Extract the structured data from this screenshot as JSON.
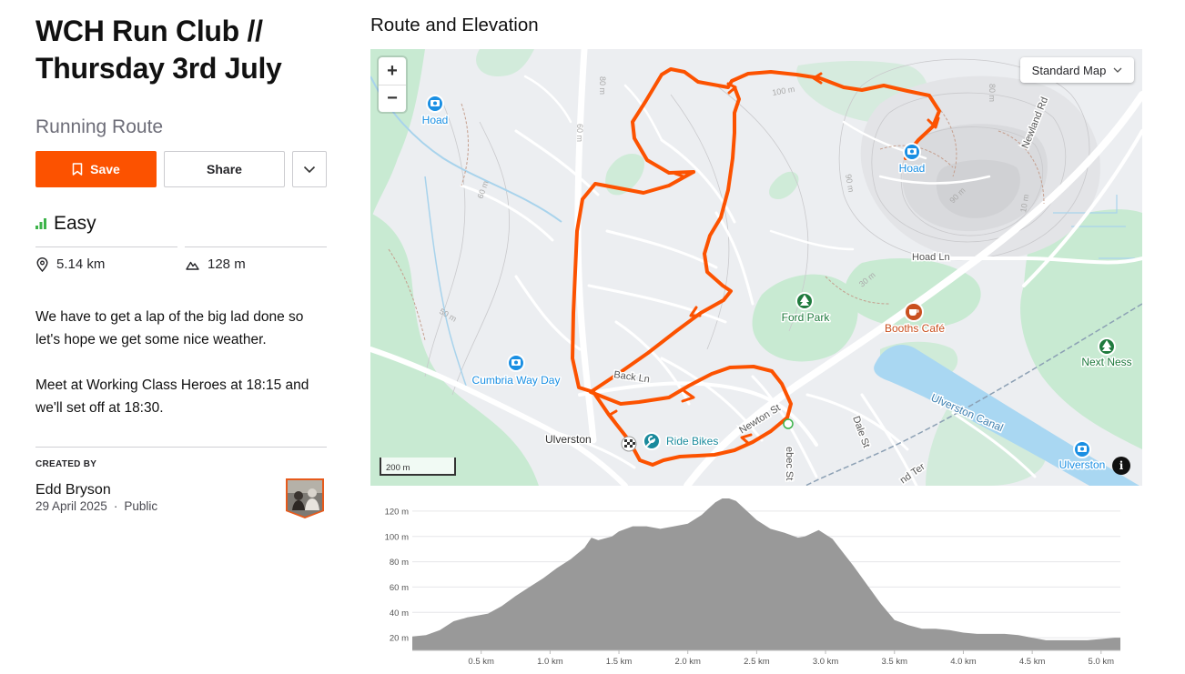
{
  "route": {
    "title": "WCH Run Club // Thursday 3rd July",
    "type": "Running Route"
  },
  "actions": {
    "save_label": "Save",
    "share_label": "Share"
  },
  "difficulty": "Easy",
  "stats": {
    "distance": "5.14 km",
    "elevation_gain": "128 m"
  },
  "description": [
    "We have to get a lap of the big lad done so let's hope we get some nice weather.",
    "Meet at Working Class Heroes at 18:15 and we'll set off at 18:30."
  ],
  "creator": {
    "label": "CREATED BY",
    "name": "Edd Bryson",
    "date": "29 April 2025",
    "separator": "·",
    "visibility": "Public"
  },
  "section_title": "Route and Elevation",
  "map": {
    "style_label": "Standard Map",
    "zoom_in": "+",
    "zoom_out": "−",
    "scale": "200 m",
    "info": "i",
    "route_color": "#fc5200",
    "labels": {
      "hoad_west": "Hoad",
      "hoad_east": "Hoad",
      "ford_park": "Ford Park",
      "booths_cafe": "Booths Café",
      "next_ness": "Next Ness",
      "cumbria_way_day": "Cumbria Way Day",
      "ride_bikes": "Ride Bikes",
      "ulverston_town": "Ulverston",
      "ulverston_poi": "Ulverston",
      "back_ln": "Back Ln",
      "newton_st": "Newton St",
      "hoad_ln": "Hoad Ln",
      "newland_rd": "Newland Rd",
      "dale_st": "Dale St",
      "ulverston_canal": "Ulverston Canal",
      "bebec_st": "ebec St",
      "nd_ter": "nd Ter",
      "contour_100": "100 m",
      "contour_90": "90 m",
      "contour_80a": "80 m",
      "contour_80b": "80 m",
      "contour_60a": "60 m",
      "contour_60b": "60 m",
      "contour_50": "50 m",
      "contour_30": "30 m",
      "contour_10": "10 m",
      "contour_90b": "90 m"
    }
  },
  "chart_data": {
    "type": "area",
    "title": "",
    "xlabel": "",
    "ylabel": "",
    "xlim": [
      0,
      5.14
    ],
    "ylim": [
      10,
      130
    ],
    "x_ticks": [
      "0.5 km",
      "1.0 km",
      "1.5 km",
      "2.0 km",
      "2.5 km",
      "3.0 km",
      "3.5 km",
      "4.0 km",
      "4.5 km",
      "5.0 km"
    ],
    "x_tick_values": [
      0.5,
      1.0,
      1.5,
      2.0,
      2.5,
      3.0,
      3.5,
      4.0,
      4.5,
      5.0
    ],
    "y_ticks": [
      "20 m",
      "40 m",
      "60 m",
      "80 m",
      "100 m",
      "120 m"
    ],
    "y_tick_values": [
      20,
      40,
      60,
      80,
      100,
      120
    ],
    "grid": "horizontal",
    "fill_color": "#999999",
    "series": [
      {
        "x": [
          0,
          0.1,
          0.2,
          0.3,
          0.4,
          0.55,
          0.65,
          0.75,
          0.85,
          0.95,
          1.05,
          1.15,
          1.25,
          1.3,
          1.35,
          1.45,
          1.5,
          1.6,
          1.7,
          1.8,
          1.9,
          2.0,
          2.1,
          2.15,
          2.2,
          2.25,
          2.3,
          2.35,
          2.4,
          2.5,
          2.6,
          2.7,
          2.8,
          2.85,
          2.95,
          3.05,
          3.1,
          3.2,
          3.3,
          3.4,
          3.5,
          3.6,
          3.7,
          3.8,
          3.9,
          4.0,
          4.1,
          4.2,
          4.3,
          4.4,
          4.5,
          4.6,
          4.7,
          4.8,
          4.9,
          5.0,
          5.1,
          5.14
        ],
        "y": [
          21,
          22,
          26,
          33,
          36,
          39,
          45,
          53,
          60,
          67,
          75,
          82,
          91,
          99,
          97,
          100,
          104,
          108,
          108,
          106,
          108,
          110,
          117,
          122,
          127,
          130,
          130,
          128,
          123,
          113,
          106,
          103,
          99,
          100,
          105,
          98,
          91,
          77,
          62,
          47,
          34,
          30,
          27,
          27,
          26,
          24,
          23,
          23,
          23,
          22,
          20,
          18,
          18,
          18,
          18,
          19,
          20,
          20
        ]
      }
    ]
  }
}
